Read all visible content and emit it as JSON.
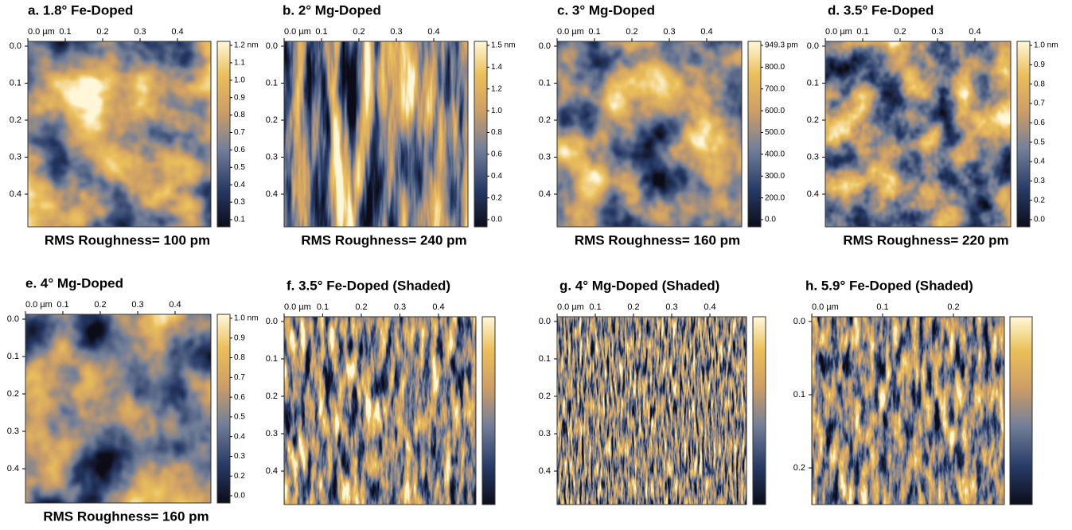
{
  "panels": [
    {
      "title": "a. 1.8° Fe-Doped",
      "x_ticks": [
        "0.0 µm",
        "0.1",
        "0.2",
        "0.3",
        "0.4"
      ],
      "y_ticks": [
        "0.0",
        "0.1",
        "0.2",
        "0.3",
        "0.4"
      ],
      "colorbar_ticks": [
        "1.2 nm",
        "1.1",
        "1.0",
        "0.9",
        "0.8",
        "0.7",
        "0.6",
        "0.5",
        "0.4",
        "0.3",
        "0.1"
      ],
      "caption": "RMS Roughness= 100 pm"
    },
    {
      "title": "b. 2° Mg-Doped",
      "x_ticks": [
        "0.0 µm",
        "0.1",
        "0.2",
        "0.3",
        "0.4"
      ],
      "y_ticks": [
        "0.0",
        "0.1",
        "0.2",
        "0.3",
        "0.4"
      ],
      "colorbar_ticks": [
        "1.5 nm",
        "1.4",
        "1.2",
        "1.0",
        "0.8",
        "0.6",
        "0.4",
        "0.2",
        "0.0"
      ],
      "caption": "RMS Roughness= 240 pm"
    },
    {
      "title": "c. 3° Mg-Doped",
      "x_ticks": [
        "0.0 µm",
        "0.1",
        "0.2",
        "0.3",
        "0.4"
      ],
      "y_ticks": [
        "0.0",
        "0.1",
        "0.2",
        "0.3",
        "0.4"
      ],
      "colorbar_ticks": [
        "949.3 pm",
        "800.0",
        "700.0",
        "600.0",
        "500.0",
        "400.0",
        "300.0",
        "200.0",
        "0.0"
      ],
      "caption": "RMS Roughness= 160 pm"
    },
    {
      "title": "d. 3.5° Fe-Doped",
      "x_ticks": [
        "0.0 µm",
        "0.1",
        "0.2",
        "0.3",
        "0.4"
      ],
      "y_ticks": [
        "0.0",
        "0.1",
        "0.2",
        "0.3",
        "0.4"
      ],
      "colorbar_ticks": [
        "1.0 nm",
        "0.9",
        "0.8",
        "0.7",
        "0.6",
        "0.5",
        "0.4",
        "0.3",
        "0.2",
        "0.0"
      ],
      "caption": "RMS Roughness= 220 pm"
    },
    {
      "title": "e. 4° Mg-Doped",
      "x_ticks": [
        "0.0 µm",
        "0.1",
        "0.2",
        "0.3",
        "0.4"
      ],
      "y_ticks": [
        "0.0",
        "0.1",
        "0.2",
        "0.3",
        "0.4"
      ],
      "colorbar_ticks": [
        "1.0 nm",
        "0.9",
        "0.8",
        "0.7",
        "0.6",
        "0.5",
        "0.4",
        "0.3",
        "0.2",
        "0.0"
      ],
      "caption": "RMS Roughness= 160 pm"
    },
    {
      "title": "f. 3.5° Fe-Doped (Shaded)",
      "x_ticks": [
        "0.0 µm",
        "0.1",
        "0.2",
        "0.3",
        "0.4"
      ],
      "y_ticks": [
        "0.0",
        "0.1",
        "0.2",
        "0.3",
        "0.4"
      ]
    },
    {
      "title": "g. 4° Mg-Doped (Shaded)",
      "x_ticks": [
        "0.0 µm",
        "0.1",
        "0.2",
        "0.3",
        "0.4"
      ],
      "y_ticks": [
        "0.0",
        "0.1",
        "0.2",
        "0.3",
        "0.4"
      ]
    },
    {
      "title": "h. 5.9° Fe-Doped (Shaded)",
      "x_ticks": [
        "0.0 µm",
        "0.1",
        "0.2"
      ],
      "y_ticks": [
        "0.0",
        "0.1",
        "0.2"
      ]
    }
  ]
}
